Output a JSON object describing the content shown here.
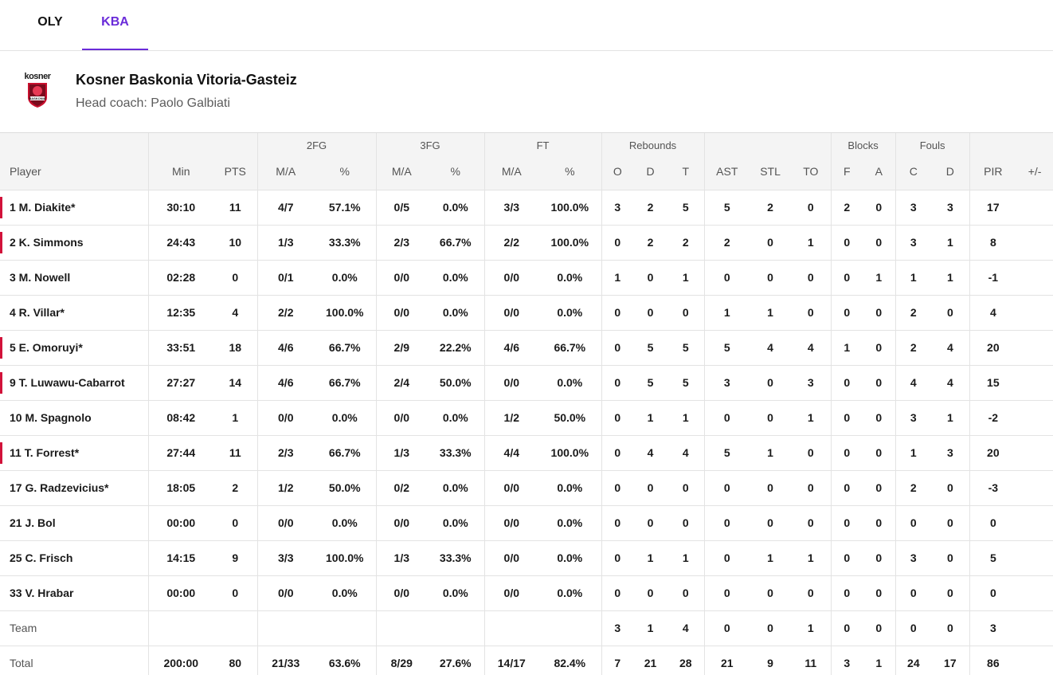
{
  "tabs": [
    {
      "label": "OLY",
      "active": false
    },
    {
      "label": "KBA",
      "active": true
    }
  ],
  "colors": {
    "accent": "#6a2bd9",
    "starter_marker": "#d2123a"
  },
  "team": {
    "logo_word": "kosner",
    "logo_badge_text": "BASKONIA",
    "name": "Kosner Baskonia Vitoria-Gasteiz",
    "coach": "Head coach: Paolo Galbiati"
  },
  "table": {
    "group_headers": {
      "fg2": "2FG",
      "fg3": "3FG",
      "ft": "FT",
      "reb": "Rebounds",
      "blk": "Blocks",
      "fouls": "Fouls"
    },
    "columns": {
      "player": "Player",
      "min": "Min",
      "pts": "PTS",
      "fg2_ma": "M/A",
      "fg2_pct": "%",
      "fg3_ma": "M/A",
      "fg3_pct": "%",
      "ft_ma": "M/A",
      "ft_pct": "%",
      "reb_o": "O",
      "reb_d": "D",
      "reb_t": "T",
      "ast": "AST",
      "stl": "STL",
      "to": "TO",
      "blk_f": "F",
      "blk_a": "A",
      "foul_c": "C",
      "foul_d": "D",
      "pir": "PIR",
      "pm": "+/-"
    },
    "rows": [
      {
        "player": "1 M. Diakite*",
        "starter": true,
        "min": "30:10",
        "pts": "11",
        "fg2_ma": "4/7",
        "fg2_pct": "57.1%",
        "fg3_ma": "0/5",
        "fg3_pct": "0.0%",
        "ft_ma": "3/3",
        "ft_pct": "100.0%",
        "reb_o": "3",
        "reb_d": "2",
        "reb_t": "5",
        "ast": "5",
        "stl": "2",
        "to": "0",
        "blk_f": "2",
        "blk_a": "0",
        "foul_c": "3",
        "foul_d": "3",
        "pir": "17",
        "pm": ""
      },
      {
        "player": "2 K. Simmons",
        "starter": true,
        "min": "24:43",
        "pts": "10",
        "fg2_ma": "1/3",
        "fg2_pct": "33.3%",
        "fg3_ma": "2/3",
        "fg3_pct": "66.7%",
        "ft_ma": "2/2",
        "ft_pct": "100.0%",
        "reb_o": "0",
        "reb_d": "2",
        "reb_t": "2",
        "ast": "2",
        "stl": "0",
        "to": "1",
        "blk_f": "0",
        "blk_a": "0",
        "foul_c": "3",
        "foul_d": "1",
        "pir": "8",
        "pm": ""
      },
      {
        "player": "3 M. Nowell",
        "starter": false,
        "min": "02:28",
        "pts": "0",
        "fg2_ma": "0/1",
        "fg2_pct": "0.0%",
        "fg3_ma": "0/0",
        "fg3_pct": "0.0%",
        "ft_ma": "0/0",
        "ft_pct": "0.0%",
        "reb_o": "1",
        "reb_d": "0",
        "reb_t": "1",
        "ast": "0",
        "stl": "0",
        "to": "0",
        "blk_f": "0",
        "blk_a": "1",
        "foul_c": "1",
        "foul_d": "1",
        "pir": "-1",
        "pm": ""
      },
      {
        "player": "4 R. Villar*",
        "starter": false,
        "min": "12:35",
        "pts": "4",
        "fg2_ma": "2/2",
        "fg2_pct": "100.0%",
        "fg3_ma": "0/0",
        "fg3_pct": "0.0%",
        "ft_ma": "0/0",
        "ft_pct": "0.0%",
        "reb_o": "0",
        "reb_d": "0",
        "reb_t": "0",
        "ast": "1",
        "stl": "1",
        "to": "0",
        "blk_f": "0",
        "blk_a": "0",
        "foul_c": "2",
        "foul_d": "0",
        "pir": "4",
        "pm": ""
      },
      {
        "player": "5 E. Omoruyi*",
        "starter": true,
        "min": "33:51",
        "pts": "18",
        "fg2_ma": "4/6",
        "fg2_pct": "66.7%",
        "fg3_ma": "2/9",
        "fg3_pct": "22.2%",
        "ft_ma": "4/6",
        "ft_pct": "66.7%",
        "reb_o": "0",
        "reb_d": "5",
        "reb_t": "5",
        "ast": "5",
        "stl": "4",
        "to": "4",
        "blk_f": "1",
        "blk_a": "0",
        "foul_c": "2",
        "foul_d": "4",
        "pir": "20",
        "pm": ""
      },
      {
        "player": "9 T. Luwawu-Cabarrot",
        "starter": true,
        "min": "27:27",
        "pts": "14",
        "fg2_ma": "4/6",
        "fg2_pct": "66.7%",
        "fg3_ma": "2/4",
        "fg3_pct": "50.0%",
        "ft_ma": "0/0",
        "ft_pct": "0.0%",
        "reb_o": "0",
        "reb_d": "5",
        "reb_t": "5",
        "ast": "3",
        "stl": "0",
        "to": "3",
        "blk_f": "0",
        "blk_a": "0",
        "foul_c": "4",
        "foul_d": "4",
        "pir": "15",
        "pm": ""
      },
      {
        "player": "10 M. Spagnolo",
        "starter": false,
        "min": "08:42",
        "pts": "1",
        "fg2_ma": "0/0",
        "fg2_pct": "0.0%",
        "fg3_ma": "0/0",
        "fg3_pct": "0.0%",
        "ft_ma": "1/2",
        "ft_pct": "50.0%",
        "reb_o": "0",
        "reb_d": "1",
        "reb_t": "1",
        "ast": "0",
        "stl": "0",
        "to": "1",
        "blk_f": "0",
        "blk_a": "0",
        "foul_c": "3",
        "foul_d": "1",
        "pir": "-2",
        "pm": ""
      },
      {
        "player": "11 T. Forrest*",
        "starter": true,
        "min": "27:44",
        "pts": "11",
        "fg2_ma": "2/3",
        "fg2_pct": "66.7%",
        "fg3_ma": "1/3",
        "fg3_pct": "33.3%",
        "ft_ma": "4/4",
        "ft_pct": "100.0%",
        "reb_o": "0",
        "reb_d": "4",
        "reb_t": "4",
        "ast": "5",
        "stl": "1",
        "to": "0",
        "blk_f": "0",
        "blk_a": "0",
        "foul_c": "1",
        "foul_d": "3",
        "pir": "20",
        "pm": ""
      },
      {
        "player": "17 G. Radzevicius*",
        "starter": false,
        "min": "18:05",
        "pts": "2",
        "fg2_ma": "1/2",
        "fg2_pct": "50.0%",
        "fg3_ma": "0/2",
        "fg3_pct": "0.0%",
        "ft_ma": "0/0",
        "ft_pct": "0.0%",
        "reb_o": "0",
        "reb_d": "0",
        "reb_t": "0",
        "ast": "0",
        "stl": "0",
        "to": "0",
        "blk_f": "0",
        "blk_a": "0",
        "foul_c": "2",
        "foul_d": "0",
        "pir": "-3",
        "pm": ""
      },
      {
        "player": "21 J. Bol",
        "starter": false,
        "min": "00:00",
        "pts": "0",
        "fg2_ma": "0/0",
        "fg2_pct": "0.0%",
        "fg3_ma": "0/0",
        "fg3_pct": "0.0%",
        "ft_ma": "0/0",
        "ft_pct": "0.0%",
        "reb_o": "0",
        "reb_d": "0",
        "reb_t": "0",
        "ast": "0",
        "stl": "0",
        "to": "0",
        "blk_f": "0",
        "blk_a": "0",
        "foul_c": "0",
        "foul_d": "0",
        "pir": "0",
        "pm": ""
      },
      {
        "player": "25 C. Frisch",
        "starter": false,
        "min": "14:15",
        "pts": "9",
        "fg2_ma": "3/3",
        "fg2_pct": "100.0%",
        "fg3_ma": "1/3",
        "fg3_pct": "33.3%",
        "ft_ma": "0/0",
        "ft_pct": "0.0%",
        "reb_o": "0",
        "reb_d": "1",
        "reb_t": "1",
        "ast": "0",
        "stl": "1",
        "to": "1",
        "blk_f": "0",
        "blk_a": "0",
        "foul_c": "3",
        "foul_d": "0",
        "pir": "5",
        "pm": ""
      },
      {
        "player": "33 V. Hrabar",
        "starter": false,
        "min": "00:00",
        "pts": "0",
        "fg2_ma": "0/0",
        "fg2_pct": "0.0%",
        "fg3_ma": "0/0",
        "fg3_pct": "0.0%",
        "ft_ma": "0/0",
        "ft_pct": "0.0%",
        "reb_o": "0",
        "reb_d": "0",
        "reb_t": "0",
        "ast": "0",
        "stl": "0",
        "to": "0",
        "blk_f": "0",
        "blk_a": "0",
        "foul_c": "0",
        "foul_d": "0",
        "pir": "0",
        "pm": ""
      }
    ],
    "team_row": {
      "player": "Team",
      "min": "",
      "pts": "",
      "fg2_ma": "",
      "fg2_pct": "",
      "fg3_ma": "",
      "fg3_pct": "",
      "ft_ma": "",
      "ft_pct": "",
      "reb_o": "3",
      "reb_d": "1",
      "reb_t": "4",
      "ast": "0",
      "stl": "0",
      "to": "1",
      "blk_f": "0",
      "blk_a": "0",
      "foul_c": "0",
      "foul_d": "0",
      "pir": "3",
      "pm": ""
    },
    "total_row": {
      "player": "Total",
      "min": "200:00",
      "pts": "80",
      "fg2_ma": "21/33",
      "fg2_pct": "63.6%",
      "fg3_ma": "8/29",
      "fg3_pct": "27.6%",
      "ft_ma": "14/17",
      "ft_pct": "82.4%",
      "reb_o": "7",
      "reb_d": "21",
      "reb_t": "28",
      "ast": "21",
      "stl": "9",
      "to": "11",
      "blk_f": "3",
      "blk_a": "1",
      "foul_c": "24",
      "foul_d": "17",
      "pir": "86",
      "pm": ""
    }
  }
}
